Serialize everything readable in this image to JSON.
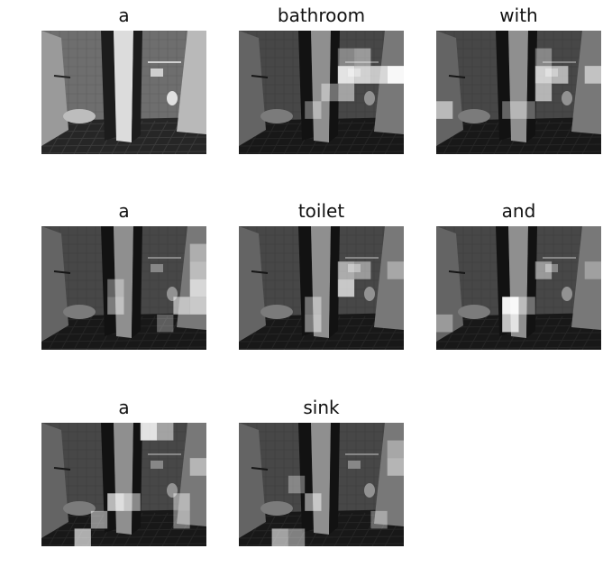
{
  "panels": [
    {
      "title": "a",
      "heat": []
    },
    {
      "title": "bathroom",
      "heat": [
        [
          6,
          1,
          0.35
        ],
        [
          7,
          1,
          0.45
        ],
        [
          6,
          2,
          0.85
        ],
        [
          7,
          2,
          0.75
        ],
        [
          8,
          2,
          0.7
        ],
        [
          9,
          2,
          0.95
        ],
        [
          5,
          3,
          0.4
        ],
        [
          6,
          3,
          0.5
        ],
        [
          4,
          4,
          0.35
        ]
      ]
    },
    {
      "title": "with",
      "heat": [
        [
          6,
          1,
          0.35
        ],
        [
          6,
          2,
          0.75
        ],
        [
          7,
          2,
          0.6
        ],
        [
          9,
          2,
          0.55
        ],
        [
          6,
          3,
          0.6
        ],
        [
          0,
          4,
          0.55
        ],
        [
          4,
          4,
          0.35
        ],
        [
          5,
          4,
          0.35
        ]
      ]
    },
    {
      "title": "a",
      "heat": [
        [
          9,
          1,
          0.4
        ],
        [
          9,
          2,
          0.5
        ],
        [
          4,
          3,
          0.35
        ],
        [
          9,
          3,
          0.7
        ],
        [
          4,
          4,
          0.45
        ],
        [
          8,
          4,
          0.55
        ],
        [
          9,
          4,
          0.6
        ],
        [
          7,
          5,
          0.3
        ]
      ]
    },
    {
      "title": "toilet",
      "heat": [
        [
          6,
          2,
          0.55
        ],
        [
          7,
          2,
          0.45
        ],
        [
          6,
          3,
          0.7
        ],
        [
          4,
          4,
          0.4
        ],
        [
          4,
          5,
          0.45
        ],
        [
          9,
          2,
          0.35
        ]
      ]
    },
    {
      "title": "and",
      "heat": [
        [
          4,
          4,
          0.95
        ],
        [
          4,
          5,
          0.75
        ],
        [
          5,
          4,
          0.4
        ],
        [
          6,
          2,
          0.45
        ],
        [
          9,
          2,
          0.3
        ],
        [
          0,
          5,
          0.35
        ]
      ]
    },
    {
      "title": "a",
      "heat": [
        [
          6,
          0,
          0.85
        ],
        [
          7,
          0,
          0.5
        ],
        [
          9,
          2,
          0.45
        ],
        [
          4,
          4,
          0.7
        ],
        [
          5,
          4,
          0.5
        ],
        [
          8,
          4,
          0.45
        ],
        [
          3,
          5,
          0.5
        ],
        [
          2,
          6,
          0.65
        ],
        [
          8,
          5,
          0.4
        ]
      ]
    },
    {
      "title": "sink",
      "heat": [
        [
          9,
          1,
          0.35
        ],
        [
          9,
          2,
          0.45
        ],
        [
          3,
          3,
          0.35
        ],
        [
          4,
          4,
          0.5
        ],
        [
          2,
          6,
          0.6
        ],
        [
          3,
          6,
          0.45
        ],
        [
          8,
          5,
          0.35
        ]
      ]
    }
  ],
  "colors": {
    "tile": "#2b2b2b",
    "wall": "#7a7a7a",
    "door": "#d4d4d4"
  }
}
